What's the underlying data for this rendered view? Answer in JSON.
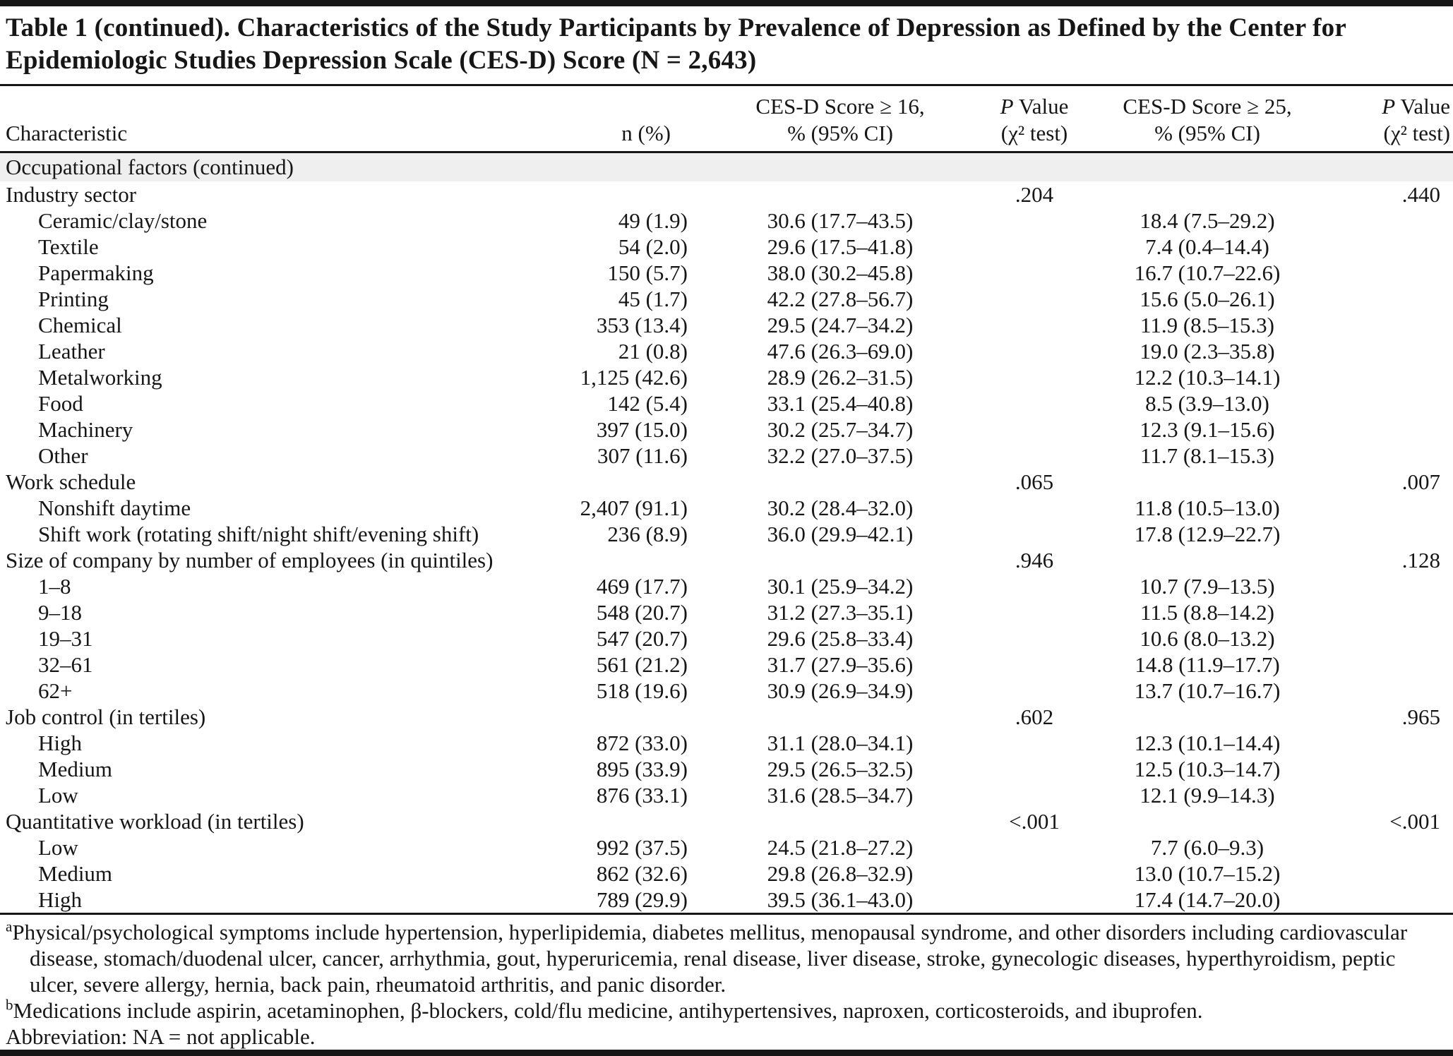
{
  "title": "Table 1 (continued). Characteristics of the Study Participants by Prevalence of Depression as Defined by the Center for Epidemiologic Studies Depression Scale (CES-D) Score (N = 2,643)",
  "table": {
    "header": {
      "characteristic": "Characteristic",
      "n": "n (%)",
      "ces16_line1": "CES-D Score ≥ 16,",
      "ces16_line2": "% (95% CI)",
      "ces25_line1": "CES-D Score ≥ 25,",
      "ces25_line2": "% (95% CI)",
      "p_italic": "P",
      "p_rest": " Value",
      "chi_line": "(χ² test)"
    },
    "rows": [
      {
        "band": true,
        "label": "Occupational factors (continued)"
      },
      {
        "label": "Industry sector",
        "indent": false,
        "n": "",
        "c16": "",
        "p16": ".204",
        "c25": "",
        "p25": ".440"
      },
      {
        "label": "Ceramic/clay/stone",
        "indent": true,
        "n": "49 (1.9)",
        "c16": "30.6 (17.7–43.5)",
        "p16": "",
        "c25": "18.4 (7.5–29.2)",
        "p25": ""
      },
      {
        "label": "Textile",
        "indent": true,
        "n": "54 (2.0)",
        "c16": "29.6 (17.5–41.8)",
        "p16": "",
        "c25": "7.4 (0.4–14.4)",
        "p25": ""
      },
      {
        "label": "Papermaking",
        "indent": true,
        "n": "150 (5.7)",
        "c16": "38.0 (30.2–45.8)",
        "p16": "",
        "c25": "16.7 (10.7–22.6)",
        "p25": ""
      },
      {
        "label": "Printing",
        "indent": true,
        "n": "45 (1.7)",
        "c16": "42.2 (27.8–56.7)",
        "p16": "",
        "c25": "15.6 (5.0–26.1)",
        "p25": ""
      },
      {
        "label": "Chemical",
        "indent": true,
        "n": "353 (13.4)",
        "c16": "29.5 (24.7–34.2)",
        "p16": "",
        "c25": "11.9 (8.5–15.3)",
        "p25": ""
      },
      {
        "label": "Leather",
        "indent": true,
        "n": "21 (0.8)",
        "c16": "47.6 (26.3–69.0)",
        "p16": "",
        "c25": "19.0 (2.3–35.8)",
        "p25": ""
      },
      {
        "label": "Metalworking",
        "indent": true,
        "n": "1,125 (42.6)",
        "c16": "28.9 (26.2–31.5)",
        "p16": "",
        "c25": "12.2 (10.3–14.1)",
        "p25": ""
      },
      {
        "label": "Food",
        "indent": true,
        "n": "142 (5.4)",
        "c16": "33.1 (25.4–40.8)",
        "p16": "",
        "c25": "8.5 (3.9–13.0)",
        "p25": ""
      },
      {
        "label": "Machinery",
        "indent": true,
        "n": "397 (15.0)",
        "c16": "30.2 (25.7–34.7)",
        "p16": "",
        "c25": "12.3 (9.1–15.6)",
        "p25": ""
      },
      {
        "label": "Other",
        "indent": true,
        "n": "307 (11.6)",
        "c16": "32.2 (27.0–37.5)",
        "p16": "",
        "c25": "11.7 (8.1–15.3)",
        "p25": ""
      },
      {
        "label": "Work schedule",
        "indent": false,
        "n": "",
        "c16": "",
        "p16": ".065",
        "c25": "",
        "p25": ".007"
      },
      {
        "label": "Nonshift daytime",
        "indent": true,
        "n": "2,407 (91.1)",
        "c16": "30.2 (28.4–32.0)",
        "p16": "",
        "c25": "11.8 (10.5–13.0)",
        "p25": ""
      },
      {
        "label": "Shift work (rotating shift/night shift/evening shift)",
        "indent": true,
        "n": "236 (8.9)",
        "c16": "36.0 (29.9–42.1)",
        "p16": "",
        "c25": "17.8 (12.9–22.7)",
        "p25": ""
      },
      {
        "label": "Size of company by number of employees (in quintiles)",
        "indent": false,
        "n": "",
        "c16": "",
        "p16": ".946",
        "c25": "",
        "p25": ".128"
      },
      {
        "label": "1–8",
        "indent": true,
        "n": "469 (17.7)",
        "c16": "30.1 (25.9–34.2)",
        "p16": "",
        "c25": "10.7 (7.9–13.5)",
        "p25": ""
      },
      {
        "label": "9–18",
        "indent": true,
        "n": "548 (20.7)",
        "c16": "31.2 (27.3–35.1)",
        "p16": "",
        "c25": "11.5 (8.8–14.2)",
        "p25": ""
      },
      {
        "label": "19–31",
        "indent": true,
        "n": "547 (20.7)",
        "c16": "29.6 (25.8–33.4)",
        "p16": "",
        "c25": "10.6 (8.0–13.2)",
        "p25": ""
      },
      {
        "label": "32–61",
        "indent": true,
        "n": "561 (21.2)",
        "c16": "31.7 (27.9–35.6)",
        "p16": "",
        "c25": "14.8 (11.9–17.7)",
        "p25": ""
      },
      {
        "label": "62+",
        "indent": true,
        "n": "518 (19.6)",
        "c16": "30.9 (26.9–34.9)",
        "p16": "",
        "c25": "13.7 (10.7–16.7)",
        "p25": ""
      },
      {
        "label": "Job control (in tertiles)",
        "indent": false,
        "n": "",
        "c16": "",
        "p16": ".602",
        "c25": "",
        "p25": ".965"
      },
      {
        "label": "High",
        "indent": true,
        "n": "872 (33.0)",
        "c16": "31.1 (28.0–34.1)",
        "p16": "",
        "c25": "12.3 (10.1–14.4)",
        "p25": ""
      },
      {
        "label": "Medium",
        "indent": true,
        "n": "895 (33.9)",
        "c16": "29.5 (26.5–32.5)",
        "p16": "",
        "c25": "12.5 (10.3–14.7)",
        "p25": ""
      },
      {
        "label": "Low",
        "indent": true,
        "n": "876 (33.1)",
        "c16": "31.6 (28.5–34.7)",
        "p16": "",
        "c25": "12.1 (9.9–14.3)",
        "p25": ""
      },
      {
        "label": "Quantitative workload (in tertiles)",
        "indent": false,
        "n": "",
        "c16": "",
        "p16": "<.001",
        "c25": "",
        "p25": "<.001"
      },
      {
        "label": "Low",
        "indent": true,
        "n": "992 (37.5)",
        "c16": "24.5 (21.8–27.2)",
        "p16": "",
        "c25": "7.7 (6.0–9.3)",
        "p25": ""
      },
      {
        "label": "Medium",
        "indent": true,
        "n": "862 (32.6)",
        "c16": "29.8 (26.8–32.9)",
        "p16": "",
        "c25": "13.0 (10.7–15.2)",
        "p25": ""
      },
      {
        "label": "High",
        "indent": true,
        "n": "789 (29.9)",
        "c16": "39.5 (36.1–43.0)",
        "p16": "",
        "c25": "17.4 (14.7–20.0)",
        "p25": ""
      }
    ]
  },
  "footnotes": {
    "a_marker": "a",
    "a_text": "Physical/psychological symptoms include hypertension, hyperlipidemia, diabetes mellitus, menopausal syndrome,  and other disorders including cardiovascular disease, stomach/duodenal ulcer, cancer, arrhythmia, gout, hyperuricemia, renal disease, liver disease, stroke, gynecologic diseases, hyperthyroidism, peptic ulcer, severe allergy, hernia, back pain, rheumatoid arthritis, and panic disorder.",
    "b_marker": "b",
    "b_text": "Medications include aspirin, acetaminophen, β-blockers, cold/flu medicine, antihypertensives, naproxen, corticosteroids, and ibuprofen.",
    "abbreviation": "Abbreviation: NA = not applicable."
  },
  "colors": {
    "band_bg": "#efefef",
    "text": "#161616",
    "rule": "#161616"
  }
}
